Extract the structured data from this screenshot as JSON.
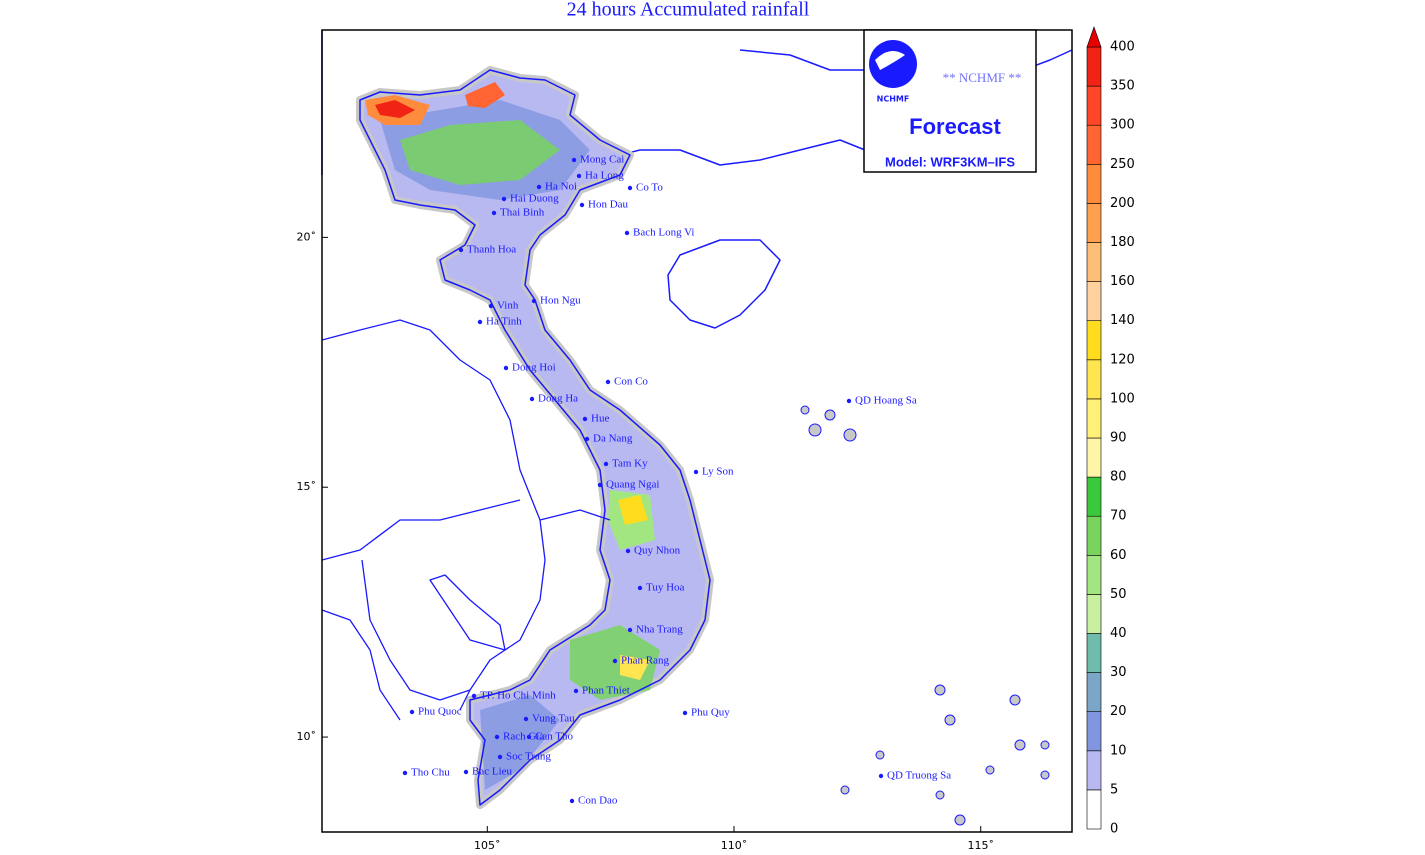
{
  "title": "24 hours Accumulated rainfall",
  "logo": {
    "org": "NCHMF",
    "banner": "** NCHMF **",
    "product": "Forecast",
    "model": "Model: WRF3KM–IFS"
  },
  "map": {
    "xlim": [
      101.65,
      116.85
    ],
    "ylim": [
      8.1,
      24.15
    ],
    "xticks": [
      {
        "value": 105,
        "label": "105˚"
      },
      {
        "value": 110,
        "label": "110˚"
      },
      {
        "value": 115,
        "label": "115˚"
      }
    ],
    "yticks": [
      {
        "value": 10,
        "label": "10˚"
      },
      {
        "value": 15,
        "label": "15˚"
      },
      {
        "value": 20,
        "label": "20˚"
      }
    ],
    "places": [
      "Mong Cai",
      "Ha Long",
      "Co To",
      "Ha Noi",
      "Hai Duong",
      "Hon Dau",
      "Thai Binh",
      "Bach Long Vi",
      "Thanh Hoa",
      "Hon Ngu",
      "Vinh",
      "Ha Tinh",
      "Dong Hoi",
      "Con Co",
      "Dong Ha",
      "Hue",
      "Da Nang",
      "Tam Ky",
      "Ly Son",
      "Quang Ngai",
      "QD Hoang Sa",
      "Quy Nhon",
      "Tuy Hoa",
      "Nha Trang",
      "Phan Rang",
      "Phan Thiet",
      "TP. Ho Chi Minh",
      "Phu Quoc",
      "Phu Quy",
      "Vung Tau",
      "Rach Gia",
      "Can Tho",
      "Soc Trang",
      "Bac Lieu",
      "Tho Chu",
      "Con Dao",
      "QD Truong Sa"
    ]
  },
  "colorbar": {
    "levels": [
      0,
      5,
      10,
      20,
      30,
      40,
      50,
      60,
      70,
      80,
      90,
      100,
      120,
      140,
      160,
      180,
      200,
      250,
      300,
      350,
      400
    ],
    "colors": [
      "#ffffff",
      "#b9b9f2",
      "#8296e0",
      "#7ca6c8",
      "#6fbcac",
      "#c8f0a0",
      "#a2e682",
      "#78d45e",
      "#3cc83c",
      "#fff5a8",
      "#fff07a",
      "#ffe650",
      "#ffdc1e",
      "#ffd2a0",
      "#ffbe78",
      "#ffa050",
      "#ff8c3c",
      "#ff6432",
      "#ff4628",
      "#f02314"
    ],
    "extend_color": "#e60000"
  }
}
